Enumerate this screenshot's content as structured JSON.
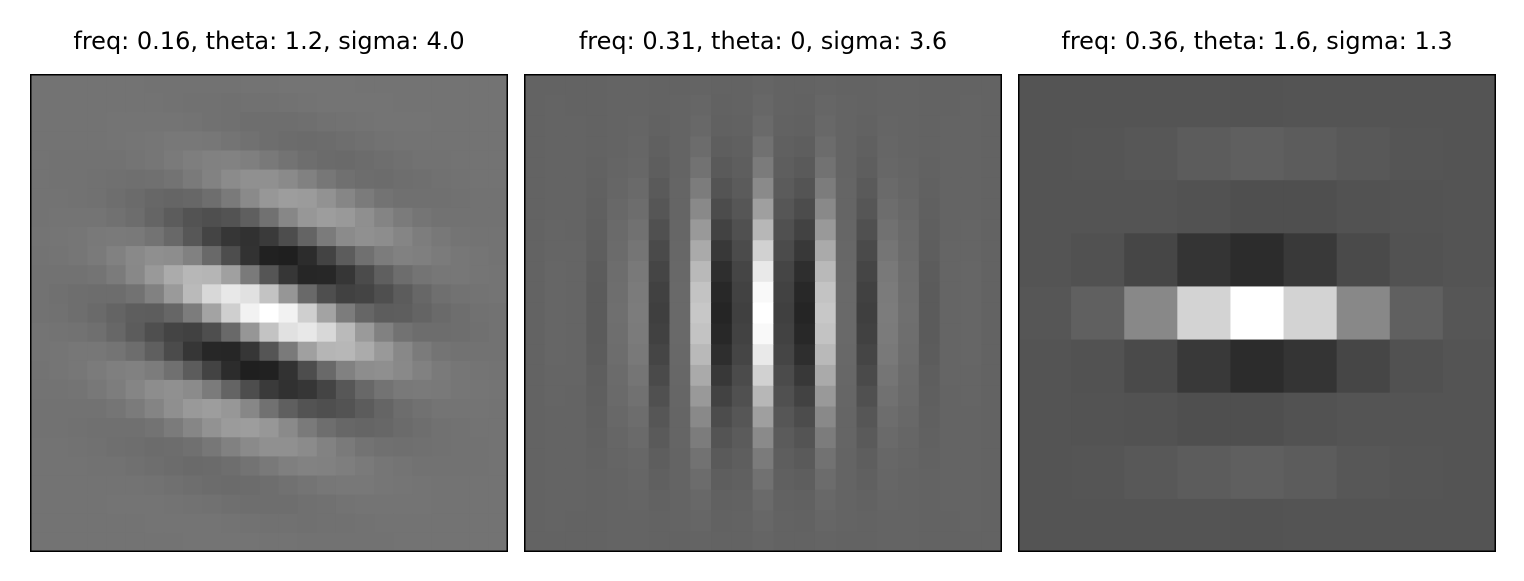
{
  "chart_data": [
    {
      "type": "heatmap",
      "title": "freq: 0.16, theta: 1.2, sigma: 4.0",
      "colormap": "gray",
      "frequency": 0.16,
      "theta": 1.2,
      "sigma": 4.0,
      "grid_cells": 25,
      "axes_visible": false,
      "background_gray": 0.45
    },
    {
      "type": "heatmap",
      "title": "freq: 0.31, theta: 0, sigma: 3.6",
      "colormap": "gray",
      "frequency": 0.31,
      "theta": 0,
      "sigma": 3.6,
      "grid_cells": 23,
      "axes_visible": false,
      "background_gray": 0.39
    },
    {
      "type": "heatmap",
      "title": "freq: 0.36, theta: 1.6, sigma: 1.3",
      "colormap": "gray",
      "frequency": 0.36,
      "theta": 1.6,
      "sigma": 1.3,
      "grid_cells": 9,
      "axes_visible": false,
      "background_gray": 0.33
    }
  ]
}
